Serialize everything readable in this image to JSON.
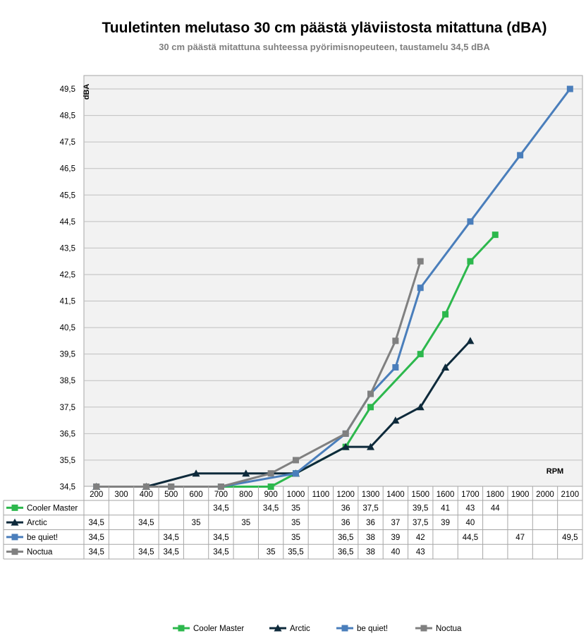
{
  "chart_data": {
    "type": "line",
    "title": "Tuuletinten melutaso 30 cm päästä yläviistosta mitattuna (dBA)",
    "subtitle": "30 cm päästä mitattuna suhteessa pyörimisnopeuteen, taustamelu 34,5 dBA",
    "xlabel": "RPM",
    "ylabel": "dBA",
    "categories": [
      "200",
      "300",
      "400",
      "500",
      "600",
      "700",
      "800",
      "900",
      "1000",
      "1100",
      "1200",
      "1300",
      "1400",
      "1500",
      "1600",
      "1700",
      "1800",
      "1900",
      "2000",
      "2100"
    ],
    "y_ticks": [
      "34,5",
      "35,5",
      "36,5",
      "37,5",
      "38,5",
      "39,5",
      "40,5",
      "41,5",
      "42,5",
      "43,5",
      "44,5",
      "45,5",
      "46,5",
      "47,5",
      "48,5",
      "49,5"
    ],
    "ylim": [
      34.5,
      49.5
    ],
    "grid": true,
    "legend_position": "bottom",
    "series": [
      {
        "name": "Cooler Master",
        "color": "#2db84d",
        "marker": "square",
        "values": [
          null,
          null,
          null,
          null,
          null,
          34.5,
          null,
          34.5,
          35,
          null,
          36,
          37.5,
          null,
          39.5,
          41,
          43,
          44,
          null,
          null,
          null
        ],
        "labels": [
          "",
          "",
          "",
          "",
          "",
          "34,5",
          "",
          "34,5",
          "35",
          "",
          "36",
          "37,5",
          "",
          "39,5",
          "41",
          "43",
          "44",
          "",
          "",
          ""
        ]
      },
      {
        "name": "Arctic",
        "color": "#0e2a3b",
        "marker": "triangle",
        "values": [
          34.5,
          null,
          34.5,
          null,
          35,
          null,
          35,
          null,
          35,
          null,
          36,
          36,
          37,
          37.5,
          39,
          40,
          null,
          null,
          null,
          null
        ],
        "labels": [
          "34,5",
          "",
          "34,5",
          "",
          "35",
          "",
          "35",
          "",
          "35",
          "",
          "36",
          "36",
          "37",
          "37,5",
          "39",
          "40",
          "",
          "",
          "",
          ""
        ]
      },
      {
        "name": "be quiet!",
        "color": "#4a7ebb",
        "marker": "square",
        "values": [
          34.5,
          null,
          null,
          34.5,
          null,
          34.5,
          null,
          null,
          35,
          null,
          36.5,
          38,
          39,
          42,
          null,
          44.5,
          null,
          47,
          null,
          49.5
        ],
        "labels": [
          "34,5",
          "",
          "",
          "34,5",
          "",
          "34,5",
          "",
          "",
          "35",
          "",
          "36,5",
          "38",
          "39",
          "42",
          "",
          "44,5",
          "",
          "47",
          "",
          "49,5"
        ]
      },
      {
        "name": "Noctua",
        "color": "#808080",
        "marker": "square",
        "values": [
          34.5,
          null,
          34.5,
          34.5,
          null,
          34.5,
          null,
          35,
          35.5,
          null,
          36.5,
          38,
          40,
          43,
          null,
          null,
          null,
          null,
          null,
          null
        ],
        "labels": [
          "34,5",
          "",
          "34,5",
          "34,5",
          "",
          "34,5",
          "",
          "35",
          "35,5",
          "",
          "36,5",
          "38",
          "40",
          "43",
          "",
          "",
          "",
          "",
          "",
          ""
        ]
      }
    ]
  }
}
